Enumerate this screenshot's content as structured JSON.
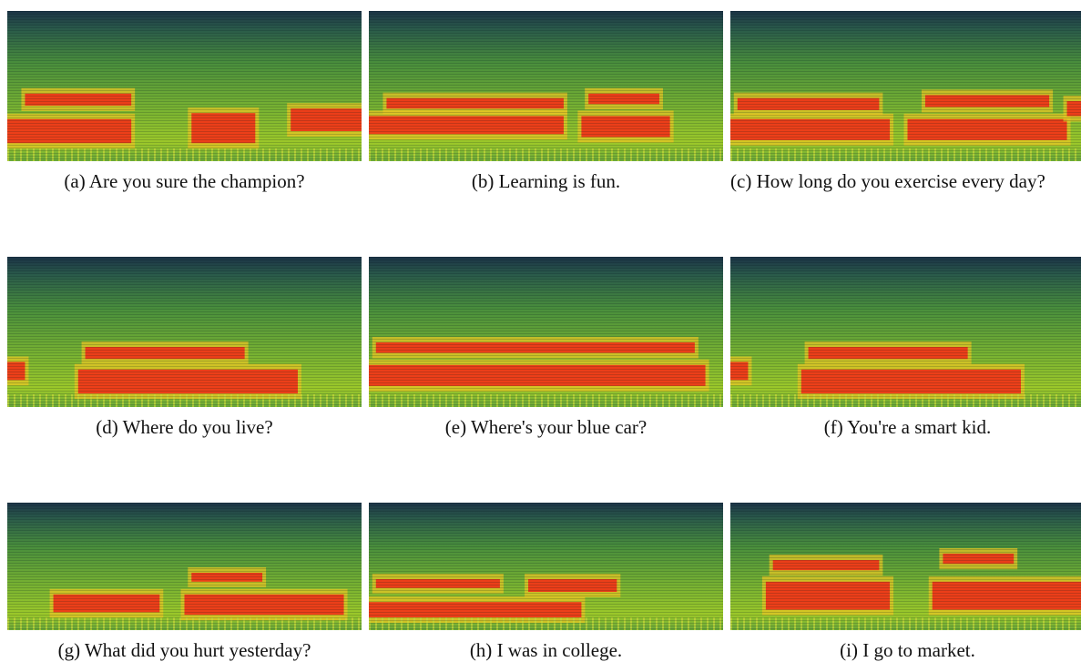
{
  "figure": {
    "panels": [
      {
        "label": "(a)",
        "caption": "Are you sure the champion?"
      },
      {
        "label": "(b)",
        "caption": "Learning is fun."
      },
      {
        "label": "(c)",
        "caption": "How long do you exercise every day?"
      },
      {
        "label": "(d)",
        "caption": "Where do you live?"
      },
      {
        "label": "(e)",
        "caption": "Where's your blue car?"
      },
      {
        "label": "(f)",
        "caption": "You're a smart kid."
      },
      {
        "label": "(g)",
        "caption": "What did you hurt yesterday?"
      },
      {
        "label": "(h)",
        "caption": "I was in college."
      },
      {
        "label": "(i)",
        "caption": "I go to market."
      }
    ]
  }
}
